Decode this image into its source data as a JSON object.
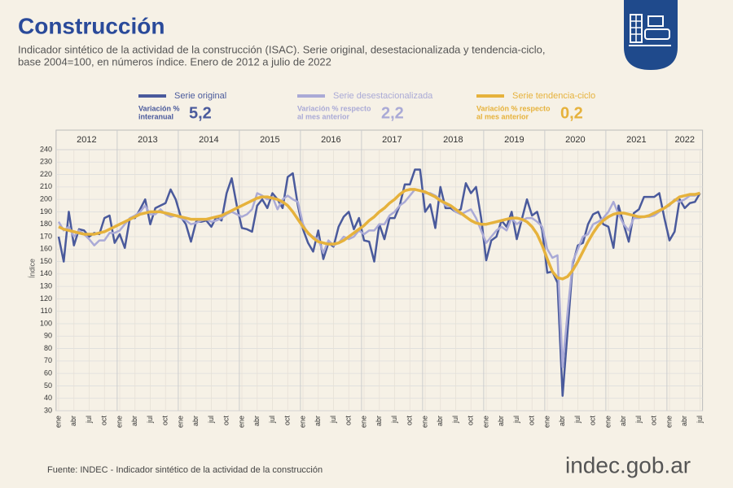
{
  "chart_data": {
    "type": "line",
    "title": "Construcción",
    "subtitle": [
      "Indicador sintético de la actividad de la construcción (ISAC). Serie original, desestacionalizada y tendencia-ciclo,",
      "base 2004=100, en números índice. Enero de 2012 a julio de 2022"
    ],
    "y_label": "Índice",
    "source": "Fuente: INDEC - Indicador sintético de la actividad de la construcción",
    "logo": "indec.gob.ar",
    "years": [
      2012,
      2013,
      2014,
      2015,
      2016,
      2017,
      2018,
      2019,
      2020,
      2021,
      2022
    ],
    "categories": [
      "ene",
      null,
      null,
      "abr",
      null,
      null,
      "jul",
      null,
      null,
      "oct",
      null,
      null,
      "ene",
      null,
      null,
      "abr",
      null,
      null,
      "jul",
      null,
      null,
      "oct",
      null,
      null,
      "ene",
      null,
      null,
      "abr",
      null,
      null,
      "jul",
      null,
      null,
      "oct",
      null,
      null,
      "ene",
      null,
      null,
      "abr",
      null,
      null,
      "jul",
      null,
      null,
      "oct",
      null,
      null,
      "ene",
      null,
      null,
      "abr",
      null,
      null,
      "jul",
      null,
      null,
      "oct",
      null,
      null,
      "ene",
      null,
      null,
      "abr",
      null,
      null,
      "jul",
      null,
      null,
      "oct",
      null,
      null,
      "ene",
      null,
      null,
      "abr",
      null,
      null,
      "jul",
      null,
      null,
      "oct",
      null,
      null,
      "ene",
      null,
      null,
      "abr",
      null,
      null,
      "jul",
      null,
      null,
      "oct",
      null,
      null,
      "ene",
      null,
      null,
      "abr",
      null,
      null,
      "jul",
      null,
      null,
      "oct",
      null,
      null,
      "ene",
      null,
      null,
      "abr",
      null,
      null,
      "jul",
      null,
      null,
      "oct",
      null,
      null,
      "ene",
      null,
      null,
      "abr",
      null,
      null,
      "jul"
    ],
    "ylim": [
      30,
      240
    ],
    "yticks": [
      30,
      40,
      50,
      60,
      70,
      80,
      90,
      100,
      110,
      120,
      130,
      140,
      150,
      160,
      170,
      180,
      190,
      200,
      210,
      220,
      230,
      240
    ],
    "grid": true,
    "series": [
      {
        "name": "Serie original",
        "color": "#4a5a9c",
        "stat_label": [
          "Variación %",
          "interanual"
        ],
        "stat": {
          "value": 5.2,
          "label": "5,2"
        },
        "values": [
          170,
          150,
          190,
          163,
          176,
          175,
          170,
          173,
          172,
          185,
          187,
          165,
          172,
          161,
          185,
          185,
          192,
          200,
          180,
          193,
          195,
          197,
          208,
          200,
          186,
          180,
          166,
          182,
          182,
          183,
          178,
          186,
          183,
          205,
          217,
          195,
          177,
          176,
          174,
          195,
          200,
          193,
          205,
          200,
          193,
          218,
          221,
          195,
          176,
          165,
          158,
          175,
          152,
          165,
          162,
          178,
          186,
          190,
          176,
          185,
          167,
          166,
          150,
          180,
          168,
          185,
          185,
          195,
          212,
          212,
          224,
          224,
          190,
          196,
          177,
          210,
          193,
          193,
          190,
          192,
          213,
          205,
          210,
          185,
          151,
          167,
          170,
          183,
          178,
          190,
          168,
          184,
          200,
          187,
          190,
          175,
          141,
          142,
          133,
          42,
          95,
          148,
          163,
          165,
          180,
          188,
          190,
          180,
          178,
          161,
          195,
          180,
          166,
          189,
          192,
          202,
          202,
          202,
          205,
          185,
          167,
          174,
          200,
          193,
          197,
          198,
          205
        ]
      },
      {
        "name": "Serie desestacionalizada",
        "color": "#aaaad6",
        "stat_label": [
          "Variación % respecto",
          "al mes anterior"
        ],
        "stat": {
          "value": 2.2,
          "label": "2,2"
        },
        "values": [
          182,
          175,
          178,
          170,
          175,
          172,
          168,
          163,
          167,
          167,
          173,
          173,
          175,
          180,
          185,
          187,
          190,
          195,
          188,
          188,
          192,
          188,
          186,
          187,
          185,
          183,
          180,
          181,
          183,
          184,
          182,
          183,
          185,
          188,
          190,
          188,
          186,
          188,
          192,
          205,
          203,
          200,
          202,
          192,
          200,
          203,
          200,
          198,
          180,
          172,
          170,
          168,
          157,
          167,
          163,
          165,
          170,
          168,
          170,
          175,
          172,
          175,
          175,
          180,
          180,
          187,
          190,
          195,
          198,
          203,
          208,
          207,
          205,
          205,
          203,
          200,
          195,
          195,
          190,
          188,
          190,
          192,
          185,
          175,
          165,
          170,
          175,
          178,
          175,
          185,
          180,
          183,
          185,
          185,
          182,
          178,
          160,
          153,
          155,
          65,
          110,
          150,
          160,
          170,
          172,
          180,
          182,
          185,
          190,
          198,
          188,
          180,
          175,
          185,
          185,
          186,
          186,
          187,
          190,
          193,
          195,
          200,
          198,
          200,
          203,
          203,
          205
        ]
      },
      {
        "name": "Serie tendencia-ciclo",
        "color": "#e6b23c",
        "stat_label": [
          "Variación % respecto",
          "al mes anterior"
        ],
        "stat": {
          "value": 0.2,
          "label": "0,2"
        },
        "values": [
          178,
          176,
          175,
          174,
          173,
          172,
          172,
          172,
          173,
          174,
          176,
          178,
          180,
          182,
          184,
          186,
          188,
          189,
          190,
          190,
          190,
          189,
          188,
          187,
          186,
          185,
          184,
          184,
          184,
          184,
          185,
          186,
          187,
          189,
          191,
          193,
          195,
          197,
          199,
          201,
          202,
          202,
          201,
          200,
          198,
          195,
          190,
          184,
          178,
          173,
          169,
          166,
          165,
          164,
          164,
          165,
          167,
          170,
          173,
          176,
          179,
          183,
          186,
          190,
          193,
          197,
          200,
          204,
          207,
          208,
          208,
          207,
          206,
          204,
          202,
          199,
          197,
          195,
          192,
          189,
          186,
          183,
          181,
          180,
          180,
          181,
          182,
          183,
          184,
          185,
          185,
          184,
          182,
          178,
          172,
          163,
          152,
          142,
          137,
          136,
          138,
          143,
          150,
          158,
          166,
          173,
          179,
          183,
          186,
          188,
          189,
          189,
          188,
          187,
          186,
          186,
          187,
          189,
          191,
          193,
          196,
          199,
          202,
          203,
          204,
          204,
          205
        ]
      }
    ]
  }
}
